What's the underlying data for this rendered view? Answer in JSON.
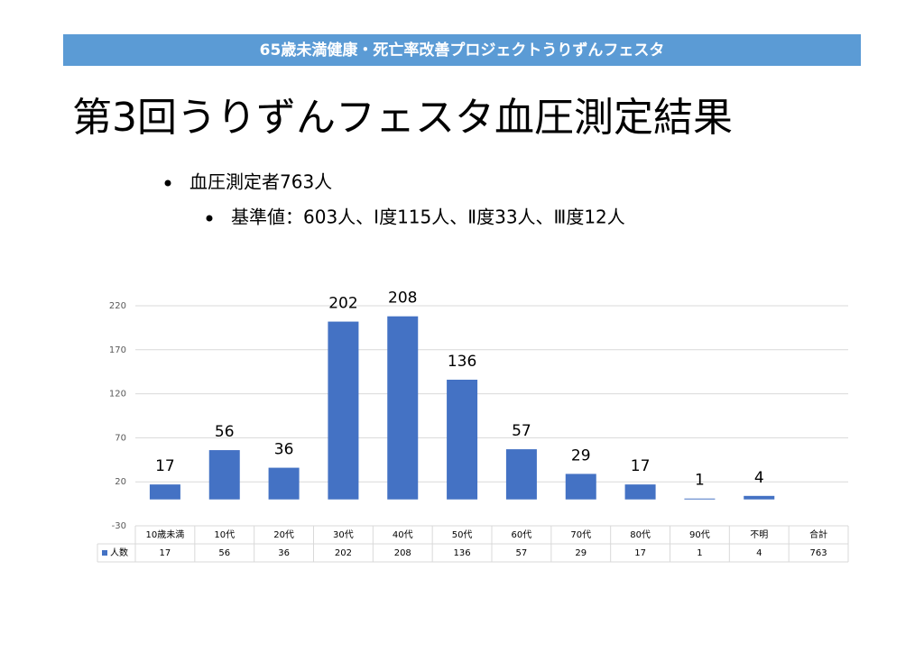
{
  "header": {
    "banner": "65歳未満健康・死亡率改善プロジェクトうりずんフェスタ",
    "title": "第3回うりずんフェスタ血圧測定結果",
    "bullets": [
      "血圧測定者763人",
      "基準値：603人、Ⅰ度115人、Ⅱ度33人、Ⅲ度12人"
    ]
  },
  "chart_data": {
    "type": "bar",
    "categories": [
      "10歳未満",
      "10代",
      "20代",
      "30代",
      "40代",
      "50代",
      "60代",
      "70代",
      "80代",
      "90代",
      "不明"
    ],
    "series": [
      {
        "name": "人数",
        "color": "#4472c4",
        "values": [
          17,
          56,
          36,
          202,
          208,
          136,
          57,
          29,
          17,
          1,
          4
        ]
      }
    ],
    "total_label": "合計",
    "total": 763,
    "ylim": [
      -30,
      220
    ],
    "yticks": [
      -30,
      20,
      70,
      120,
      170,
      220
    ],
    "grid": true
  }
}
